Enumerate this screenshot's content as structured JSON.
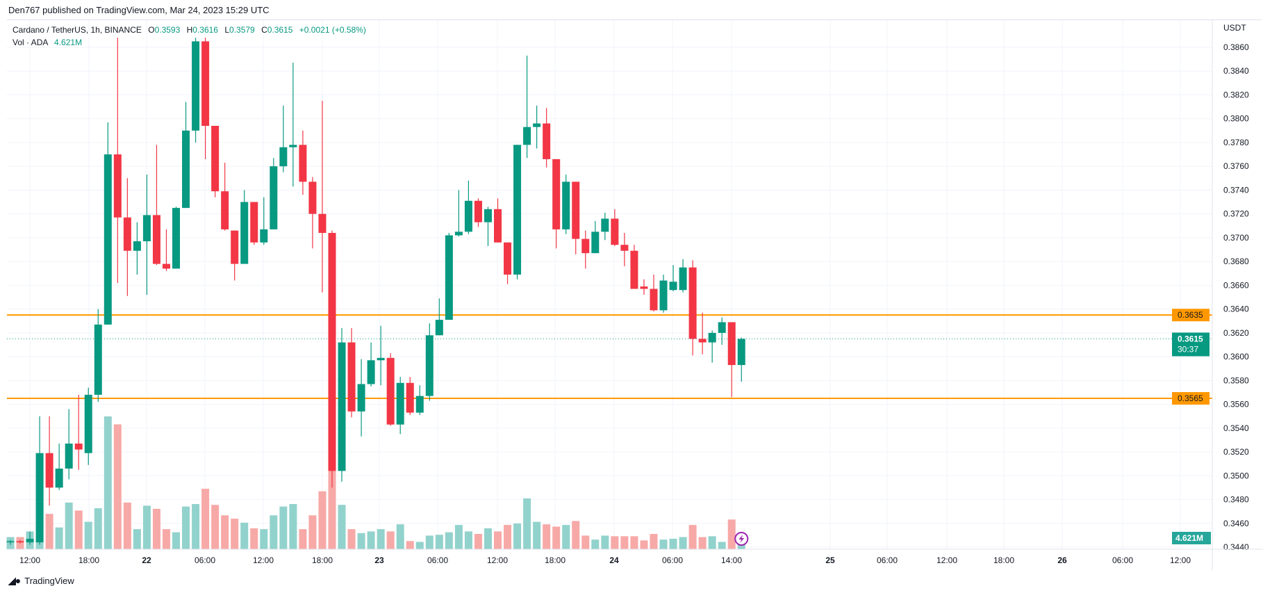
{
  "publish_line": "Den767 published on TradingView.com, Mar 24, 2023 15:29 UTC",
  "legend": {
    "symbol": "Cardano / TetherUS, 1h, BINANCE",
    "o_label": "O",
    "o": "0.3593",
    "h_label": "H",
    "h": "0.3616",
    "l_label": "L",
    "l": "0.3579",
    "c_label": "C",
    "c": "0.3615",
    "change": "+0.0021 (+0.58%)",
    "vol_label": "Vol · ADA",
    "vol": "4.621M"
  },
  "footer": {
    "brand": "TradingView"
  },
  "colors": {
    "up": "#089981",
    "down": "#F23645",
    "vol_up": "#92D2CC",
    "vol_down": "#F7A9A7",
    "level": "#FF9800",
    "grid": "#F0F3FA"
  },
  "chart_data": {
    "type": "candlestick",
    "title": "Cardano / TetherUS, 1h, BINANCE",
    "currency": "USDT",
    "ylim": [
      0.344,
      0.386
    ],
    "y_ticks": [
      "0.3860",
      "0.3840",
      "0.3820",
      "0.3800",
      "0.3780",
      "0.3760",
      "0.3740",
      "0.3720",
      "0.3700",
      "0.3680",
      "0.3660",
      "0.3640",
      "0.3620",
      "0.3600",
      "0.3580",
      "0.3560",
      "0.3540",
      "0.3520",
      "0.3500",
      "0.3480",
      "0.3460",
      "0.3440"
    ],
    "x_ticks": [
      "12:00",
      "18:00",
      "22",
      "06:00",
      "12:00",
      "18:00",
      "23",
      "06:00",
      "12:00",
      "18:00",
      "24",
      "06:00",
      "14:00",
      "25",
      "06:00",
      "12:00",
      "18:00",
      "26",
      "06:00",
      "12:00"
    ],
    "grid": true,
    "horizontal_levels": [
      {
        "price": 0.3635,
        "label": "0.3635"
      },
      {
        "price": 0.3565,
        "label": "0.3565"
      }
    ],
    "last_price": {
      "value": 0.3615,
      "label": "0.3615",
      "countdown": "30:37"
    },
    "last_volume_label": "4.621M",
    "ohlc": [
      [
        0.3444,
        0.3446,
        0.3442,
        0.3445
      ],
      [
        0.3445,
        0.3446,
        0.3443,
        0.3444
      ],
      [
        0.3444,
        0.3453,
        0.3442,
        0.3447
      ],
      [
        0.3444,
        0.355,
        0.3442,
        0.3519
      ],
      [
        0.3519,
        0.355,
        0.3475,
        0.349
      ],
      [
        0.349,
        0.3527,
        0.3488,
        0.3506
      ],
      [
        0.3506,
        0.3556,
        0.3497,
        0.3527
      ],
      [
        0.3527,
        0.3568,
        0.3505,
        0.3522
      ],
      [
        0.3519,
        0.3574,
        0.3509,
        0.3568
      ],
      [
        0.3568,
        0.364,
        0.3562,
        0.3627
      ],
      [
        0.3627,
        0.3797,
        0.3627,
        0.377
      ],
      [
        0.377,
        0.3868,
        0.3662,
        0.3717
      ],
      [
        0.3717,
        0.375,
        0.3651,
        0.3689
      ],
      [
        0.3689,
        0.3713,
        0.3669,
        0.3697
      ],
      [
        0.3697,
        0.3753,
        0.3652,
        0.3719
      ],
      [
        0.3719,
        0.3778,
        0.3677,
        0.3678
      ],
      [
        0.3678,
        0.3707,
        0.3672,
        0.3674
      ],
      [
        0.3674,
        0.3726,
        0.3674,
        0.3725
      ],
      [
        0.3725,
        0.3814,
        0.3725,
        0.379
      ],
      [
        0.379,
        0.3868,
        0.378,
        0.3865
      ],
      [
        0.3865,
        0.3868,
        0.3766,
        0.3794
      ],
      [
        0.3794,
        0.3794,
        0.3734,
        0.3739
      ],
      [
        0.3739,
        0.3763,
        0.3706,
        0.3707
      ],
      [
        0.3706,
        0.3706,
        0.3664,
        0.3678
      ],
      [
        0.3678,
        0.374,
        0.3678,
        0.373
      ],
      [
        0.373,
        0.373,
        0.3694,
        0.3696
      ],
      [
        0.3696,
        0.3734,
        0.3694,
        0.3707
      ],
      [
        0.3707,
        0.3767,
        0.3707,
        0.376
      ],
      [
        0.376,
        0.3811,
        0.3755,
        0.3776
      ],
      [
        0.3776,
        0.3847,
        0.3743,
        0.3778
      ],
      [
        0.3778,
        0.379,
        0.3736,
        0.3747
      ],
      [
        0.3747,
        0.3751,
        0.3691,
        0.372
      ],
      [
        0.372,
        0.3815,
        0.3654,
        0.3704
      ],
      [
        0.3704,
        0.3706,
        0.349,
        0.3504
      ],
      [
        0.3504,
        0.3624,
        0.3495,
        0.3612
      ],
      [
        0.3612,
        0.3624,
        0.3549,
        0.3554
      ],
      [
        0.3554,
        0.3598,
        0.3533,
        0.3577
      ],
      [
        0.3577,
        0.3612,
        0.3575,
        0.3597
      ],
      [
        0.3597,
        0.3626,
        0.3576,
        0.3599
      ],
      [
        0.3599,
        0.3603,
        0.3542,
        0.3543
      ],
      [
        0.3543,
        0.3583,
        0.3535,
        0.3578
      ],
      [
        0.3578,
        0.3583,
        0.3551,
        0.3553
      ],
      [
        0.3553,
        0.3576,
        0.3551,
        0.3567
      ],
      [
        0.3567,
        0.3628,
        0.3563,
        0.3618
      ],
      [
        0.3618,
        0.3649,
        0.3618,
        0.3631
      ],
      [
        0.3631,
        0.3704,
        0.3631,
        0.3702
      ],
      [
        0.3702,
        0.374,
        0.3701,
        0.3705
      ],
      [
        0.3705,
        0.3748,
        0.3703,
        0.3731
      ],
      [
        0.3731,
        0.3733,
        0.3709,
        0.3713
      ],
      [
        0.3713,
        0.3726,
        0.3693,
        0.3724
      ],
      [
        0.3724,
        0.3733,
        0.3696,
        0.3696
      ],
      [
        0.3696,
        0.3696,
        0.3661,
        0.3669
      ],
      [
        0.3669,
        0.3778,
        0.3665,
        0.3778
      ],
      [
        0.3778,
        0.3853,
        0.3767,
        0.3793
      ],
      [
        0.3793,
        0.3811,
        0.3775,
        0.3796
      ],
      [
        0.3796,
        0.3809,
        0.3759,
        0.3766
      ],
      [
        0.3766,
        0.3766,
        0.3691,
        0.3707
      ],
      [
        0.3707,
        0.3753,
        0.3703,
        0.3747
      ],
      [
        0.3747,
        0.3747,
        0.3686,
        0.3699
      ],
      [
        0.3699,
        0.3706,
        0.3674,
        0.3687
      ],
      [
        0.3687,
        0.3714,
        0.3687,
        0.3705
      ],
      [
        0.3705,
        0.3721,
        0.3698,
        0.3716
      ],
      [
        0.3716,
        0.3724,
        0.3693,
        0.3694
      ],
      [
        0.3694,
        0.3704,
        0.3676,
        0.3689
      ],
      [
        0.3689,
        0.3694,
        0.3657,
        0.3657
      ],
      [
        0.3659,
        0.3665,
        0.3652,
        0.3657
      ],
      [
        0.3657,
        0.3669,
        0.3638,
        0.3639
      ],
      [
        0.3639,
        0.3669,
        0.3637,
        0.3664
      ],
      [
        0.3656,
        0.3677,
        0.3655,
        0.3663
      ],
      [
        0.3656,
        0.3682,
        0.3654,
        0.3675
      ],
      [
        0.3675,
        0.3681,
        0.3601,
        0.3615
      ],
      [
        0.3615,
        0.3637,
        0.3602,
        0.3612
      ],
      [
        0.3612,
        0.3622,
        0.3595,
        0.362
      ],
      [
        0.362,
        0.3633,
        0.361,
        0.3629
      ],
      [
        0.3629,
        0.3629,
        0.3566,
        0.3593
      ],
      [
        0.3593,
        0.3616,
        0.3579,
        0.3615
      ]
    ],
    "volume_millions": [
      5.8,
      5.8,
      8.5,
      35.8,
      16.9,
      10.4,
      22.3,
      18.5,
      13.1,
      19.6,
      63.5,
      59.7,
      22.3,
      9.6,
      20.8,
      19.3,
      9.6,
      8.1,
      20.4,
      21.6,
      28.9,
      21.2,
      16.2,
      14.6,
      12.7,
      10.0,
      9.6,
      16.2,
      20.4,
      21.6,
      9.6,
      16.2,
      27.7,
      38.1,
      21.2,
      9.6,
      7.7,
      8.5,
      9.6,
      8.5,
      11.9,
      3.9,
      3.5,
      6.5,
      6.9,
      8.1,
      11.6,
      8.5,
      7.3,
      10.0,
      8.5,
      11.6,
      12.3,
      24.3,
      13.1,
      11.9,
      10.8,
      11.6,
      13.5,
      6.5,
      4.6,
      6.5,
      6.2,
      6.2,
      6.2,
      4.2,
      7.3,
      4.6,
      5.0,
      5.8,
      11.6,
      5.8,
      6.2,
      3.5,
      14.2,
      4.621
    ]
  }
}
